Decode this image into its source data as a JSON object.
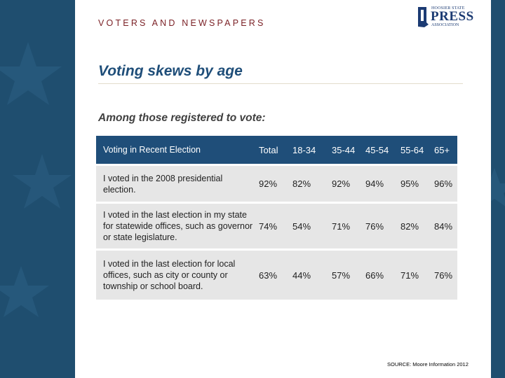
{
  "header": {
    "kicker": "VOTERS AND NEWSPAPERS",
    "logo": {
      "top_line": "HOOSIER STATE",
      "main": "PRESS",
      "bottom_line": "ASSOCIATION",
      "icon": "indiana-map-logo-icon"
    }
  },
  "title": "Voting skews by age",
  "subtitle": "Among those registered to vote:",
  "table": {
    "row_header": "Voting in Recent Election",
    "columns": [
      "Total",
      "18-34",
      "35-44",
      "45-54",
      "55-64",
      "65+"
    ],
    "rows": [
      {
        "label": "I voted in the 2008 presidential election.",
        "values": [
          "92%",
          "82%",
          "92%",
          "94%",
          "95%",
          "96%"
        ]
      },
      {
        "label": "I voted in the last election in my state for statewide offices, such as governor or state legislature.",
        "values": [
          "74%",
          "54%",
          "71%",
          "76%",
          "82%",
          "84%"
        ]
      },
      {
        "label": "I voted in the last election for local offices, such as city or county or township or school board.",
        "values": [
          "63%",
          "44%",
          "57%",
          "66%",
          "71%",
          "76%"
        ]
      }
    ]
  },
  "source": "SOURCE: Moore Information 2012",
  "colors": {
    "background": "#1f4e6f",
    "header_fill": "#1f4e79",
    "row_fill": "#e6e6e6",
    "kicker": "#7a1f24",
    "title": "#1f4e79"
  }
}
